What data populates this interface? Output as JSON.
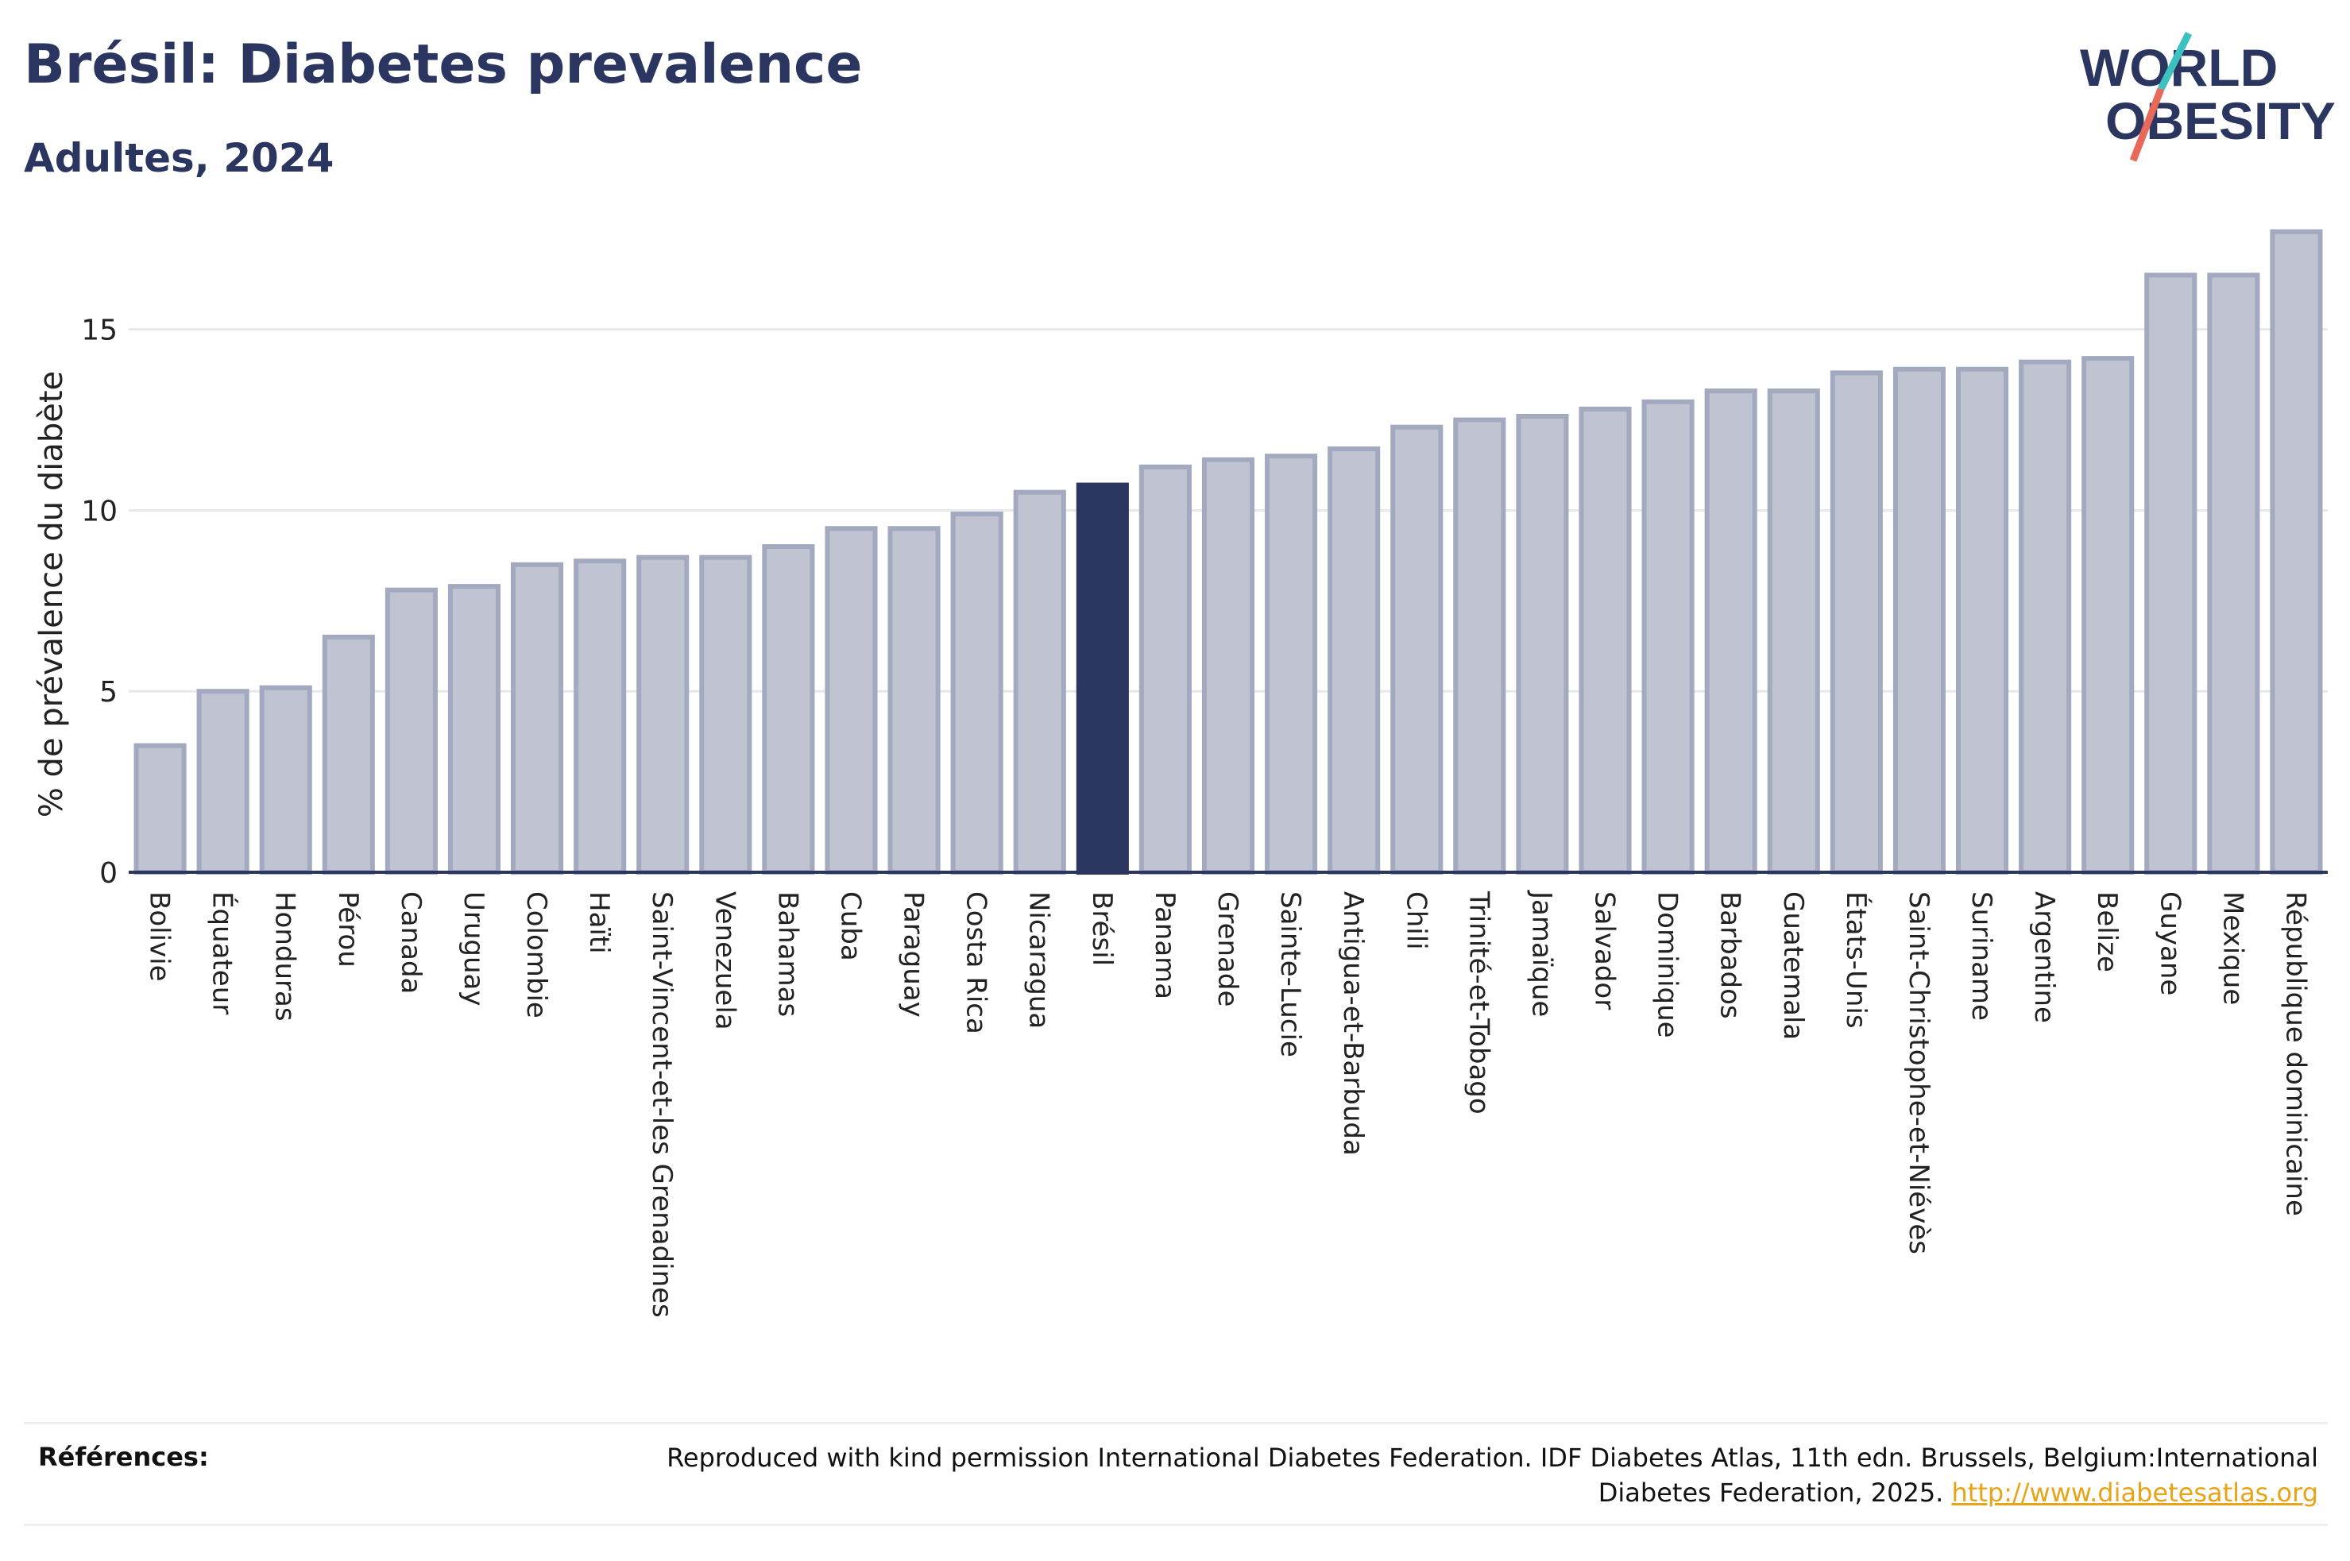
{
  "header": {
    "title": "Brésil: Diabetes prevalence",
    "subtitle": "Adultes, 2024"
  },
  "logo": {
    "line1": "WORLD",
    "line2": "OBESITY",
    "accent_colors": [
      "#3cc0c0",
      "#e8685a"
    ]
  },
  "chart_data": {
    "type": "bar",
    "ylabel": "% de prévalence du diabète",
    "ylim": [
      0,
      18
    ],
    "yticks": [
      0,
      5,
      10,
      15
    ],
    "grid": true,
    "highlight": "Brésil",
    "colors": {
      "bar": "#c0c4d2",
      "bar_border": "#a3a9be",
      "highlight": "#2b3660",
      "grid": "#e6e8ec",
      "axis": "#2b3660"
    },
    "categories": [
      "Bolivie",
      "Équateur",
      "Honduras",
      "Pérou",
      "Canada",
      "Uruguay",
      "Colombie",
      "Haïti",
      "Saint-Vincent-et-les Grenadines",
      "Venezuela",
      "Bahamas",
      "Cuba",
      "Paraguay",
      "Costa Rica",
      "Nicaragua",
      "Brésil",
      "Panama",
      "Grenade",
      "Sainte-Lucie",
      "Antigua-et-Barbuda",
      "Chili",
      "Trinité-et-Tobago",
      "Jamaïque",
      "Salvador",
      "Dominique",
      "Barbados",
      "Guatemala",
      "États-Unis",
      "Saint-Christophe-et-Niévès",
      "Suriname",
      "Argentine",
      "Belize",
      "Guyane",
      "Mexique",
      "République dominicaine"
    ],
    "values": [
      3.5,
      5.0,
      5.1,
      6.5,
      7.8,
      7.9,
      8.5,
      8.6,
      8.7,
      8.7,
      9.0,
      9.5,
      9.5,
      9.9,
      10.5,
      10.7,
      11.2,
      11.4,
      11.5,
      11.7,
      12.3,
      12.5,
      12.6,
      12.8,
      13.0,
      13.3,
      13.3,
      13.8,
      13.9,
      13.9,
      14.1,
      14.2,
      16.5,
      16.5,
      17.7
    ]
  },
  "references": {
    "label": "Références:",
    "text": "Reproduced with kind permission International Diabetes Federation. IDF Diabetes Atlas, 11th edn. Brussels, Belgium:International Diabetes Federation, 2025.",
    "link_text": "http://www.diabetesatlas.org"
  }
}
